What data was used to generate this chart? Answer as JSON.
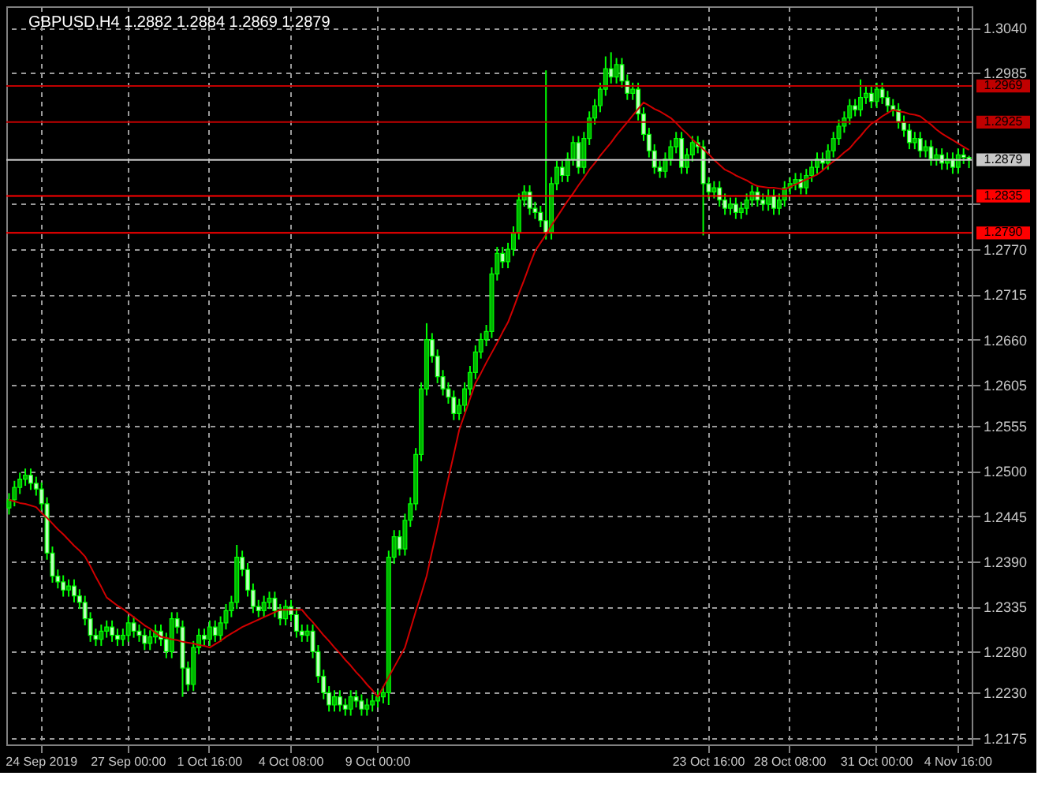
{
  "chart_data": {
    "type": "candlestick",
    "title": "GBPUSD,H4 1.2882 1.2884 1.2869 1.2879",
    "color": "#00ff00",
    "grid": true,
    "categories": [
      null,
      null,
      null,
      null,
      null,
      null,
      "24 Sep 2019",
      null,
      null,
      null,
      null,
      null,
      null,
      null,
      null,
      null,
      null,
      null,
      null,
      null,
      null,
      null,
      "27 Sep 00:00",
      null,
      null,
      null,
      null,
      null,
      null,
      null,
      null,
      null,
      null,
      null,
      null,
      null,
      null,
      "1 Oct 16:00",
      null,
      null,
      null,
      null,
      null,
      null,
      null,
      null,
      null,
      null,
      null,
      null,
      null,
      null,
      "4 Oct 08:00",
      null,
      null,
      null,
      null,
      null,
      null,
      null,
      null,
      null,
      null,
      null,
      null,
      null,
      null,
      null,
      "9 Oct 00:00",
      null,
      null,
      null,
      null,
      null,
      null,
      null,
      null,
      null,
      null,
      null,
      null,
      null,
      null,
      null,
      null,
      null,
      null,
      null,
      null,
      null,
      null,
      null,
      null,
      null,
      null,
      null,
      null,
      null,
      null,
      null,
      null,
      null,
      null,
      null,
      null,
      null,
      null,
      null,
      null,
      null,
      null,
      null,
      null,
      null,
      null,
      null,
      null,
      null,
      null,
      null,
      null,
      null,
      null,
      null,
      null,
      null,
      null,
      null,
      null,
      "23 Oct 16:00",
      null,
      null,
      null,
      null,
      null,
      null,
      null,
      null,
      null,
      null,
      null,
      null,
      null,
      null,
      "28 Oct 08:00",
      null,
      null,
      null,
      null,
      null,
      null,
      null,
      null,
      null,
      null,
      null,
      null,
      null,
      null,
      null,
      "31 Oct 00:00",
      null,
      null,
      null,
      null,
      null,
      null,
      null,
      null,
      null,
      null,
      null,
      null,
      null,
      null,
      "4 Nov 16:00",
      null,
      null
    ],
    "ohlc": [
      [
        1.2455,
        1.2473,
        1.2447,
        1.2465
      ],
      [
        1.2465,
        1.2488,
        1.2457,
        1.248
      ],
      [
        1.248,
        1.2498,
        1.2472,
        1.249
      ],
      [
        1.249,
        1.2503,
        1.2482,
        1.2495
      ],
      [
        1.2495,
        1.2503,
        1.2477,
        1.2485
      ],
      [
        1.2485,
        1.2493,
        1.247,
        1.2478
      ],
      [
        1.2478,
        1.2486,
        1.2452,
        1.246
      ],
      [
        1.246,
        1.2468,
        1.2392,
        1.24
      ],
      [
        1.24,
        1.2408,
        1.2364,
        1.2372
      ],
      [
        1.2372,
        1.238,
        1.2357,
        1.2365
      ],
      [
        1.2365,
        1.2373,
        1.2347,
        1.2355
      ],
      [
        1.2355,
        1.2368,
        1.2347,
        1.236
      ],
      [
        1.236,
        1.2368,
        1.234,
        1.2348
      ],
      [
        1.2348,
        1.2356,
        1.2332,
        1.234
      ],
      [
        1.234,
        1.2348,
        1.2312,
        1.232
      ],
      [
        1.232,
        1.2328,
        1.2292,
        1.23
      ],
      [
        1.23,
        1.2308,
        1.2287,
        1.2295
      ],
      [
        1.2295,
        1.2313,
        1.2287,
        1.2305
      ],
      [
        1.2305,
        1.2318,
        1.2297,
        1.231
      ],
      [
        1.231,
        1.2318,
        1.2292,
        1.23
      ],
      [
        1.23,
        1.2308,
        1.2287,
        1.2295
      ],
      [
        1.2295,
        1.2308,
        1.2287,
        1.23
      ],
      [
        1.23,
        1.2323,
        1.2292,
        1.2315
      ],
      [
        1.2315,
        1.2323,
        1.2297,
        1.2305
      ],
      [
        1.2305,
        1.2313,
        1.2292,
        1.23
      ],
      [
        1.23,
        1.2308,
        1.2282,
        1.229
      ],
      [
        1.229,
        1.2306,
        1.2282,
        1.2298
      ],
      [
        1.2298,
        1.2313,
        1.229,
        1.2305
      ],
      [
        1.2305,
        1.2313,
        1.2287,
        1.2295
      ],
      [
        1.2295,
        1.2303,
        1.2272,
        1.228
      ],
      [
        1.228,
        1.2328,
        1.2272,
        1.232
      ],
      [
        1.232,
        1.2328,
        1.2302,
        1.231
      ],
      [
        1.231,
        1.2318,
        1.2225,
        1.226
      ],
      [
        1.226,
        1.2268,
        1.2232,
        1.224
      ],
      [
        1.224,
        1.2293,
        1.2232,
        1.2285
      ],
      [
        1.2285,
        1.2308,
        1.2277,
        1.23
      ],
      [
        1.23,
        1.2308,
        1.2287,
        1.2295
      ],
      [
        1.2295,
        1.2318,
        1.2287,
        1.231
      ],
      [
        1.231,
        1.2318,
        1.2292,
        1.23
      ],
      [
        1.23,
        1.2323,
        1.2292,
        1.2315
      ],
      [
        1.2315,
        1.2338,
        1.2307,
        1.233
      ],
      [
        1.233,
        1.2348,
        1.2322,
        1.234
      ],
      [
        1.234,
        1.241,
        1.2332,
        1.2395
      ],
      [
        1.2395,
        1.2403,
        1.2372,
        1.238
      ],
      [
        1.238,
        1.2388,
        1.2347,
        1.2355
      ],
      [
        1.2355,
        1.2363,
        1.2327,
        1.2335
      ],
      [
        1.2335,
        1.2343,
        1.2322,
        1.233
      ],
      [
        1.233,
        1.2348,
        1.2322,
        1.234
      ],
      [
        1.234,
        1.2353,
        1.2332,
        1.2345
      ],
      [
        1.2345,
        1.2353,
        1.2322,
        1.233
      ],
      [
        1.233,
        1.2338,
        1.2312,
        1.232
      ],
      [
        1.232,
        1.2343,
        1.2312,
        1.2335
      ],
      [
        1.2335,
        1.2343,
        1.2317,
        1.2325
      ],
      [
        1.2325,
        1.2333,
        1.2297,
        1.2305
      ],
      [
        1.2305,
        1.2313,
        1.2292,
        1.23
      ],
      [
        1.23,
        1.2313,
        1.2292,
        1.2305
      ],
      [
        1.2305,
        1.2313,
        1.2272,
        1.228
      ],
      [
        1.228,
        1.2288,
        1.2242,
        1.225
      ],
      [
        1.225,
        1.2258,
        1.2222,
        1.223
      ],
      [
        1.223,
        1.2238,
        1.2207,
        1.2215
      ],
      [
        1.2215,
        1.2233,
        1.2207,
        1.2225
      ],
      [
        1.2225,
        1.2233,
        1.2207,
        1.2215
      ],
      [
        1.2215,
        1.2223,
        1.2202,
        1.221
      ],
      [
        1.221,
        1.2233,
        1.2202,
        1.2225
      ],
      [
        1.2225,
        1.2233,
        1.2212,
        1.222
      ],
      [
        1.222,
        1.2228,
        1.2202,
        1.221
      ],
      [
        1.221,
        1.2223,
        1.2202,
        1.2215
      ],
      [
        1.2215,
        1.2228,
        1.2207,
        1.222
      ],
      [
        1.222,
        1.2233,
        1.2212,
        1.2225
      ],
      [
        1.2225,
        1.2238,
        1.2217,
        1.223
      ],
      [
        1.223,
        1.2403,
        1.2215,
        1.2395
      ],
      [
        1.2395,
        1.2428,
        1.2387,
        1.242
      ],
      [
        1.242,
        1.2428,
        1.2397,
        1.2405
      ],
      [
        1.2405,
        1.2448,
        1.2397,
        1.244
      ],
      [
        1.244,
        1.2468,
        1.2432,
        1.246
      ],
      [
        1.246,
        1.2528,
        1.2452,
        1.252
      ],
      [
        1.252,
        1.2608,
        1.2512,
        1.26
      ],
      [
        1.26,
        1.268,
        1.2592,
        1.266
      ],
      [
        1.266,
        1.2668,
        1.2632,
        1.264
      ],
      [
        1.264,
        1.2648,
        1.2607,
        1.2615
      ],
      [
        1.2615,
        1.2623,
        1.2592,
        1.26
      ],
      [
        1.26,
        1.2608,
        1.2582,
        1.259
      ],
      [
        1.259,
        1.2598,
        1.2562,
        1.257
      ],
      [
        1.257,
        1.2588,
        1.2562,
        1.258
      ],
      [
        1.258,
        1.2608,
        1.2572,
        1.26
      ],
      [
        1.26,
        1.2628,
        1.2592,
        1.262
      ],
      [
        1.262,
        1.2653,
        1.2612,
        1.2645
      ],
      [
        1.2645,
        1.2668,
        1.2637,
        1.266
      ],
      [
        1.266,
        1.2678,
        1.2652,
        1.267
      ],
      [
        1.267,
        1.2748,
        1.2662,
        1.274
      ],
      [
        1.274,
        1.2773,
        1.2732,
        1.2765
      ],
      [
        1.2765,
        1.2773,
        1.2747,
        1.2755
      ],
      [
        1.2755,
        1.2778,
        1.2747,
        1.277
      ],
      [
        1.277,
        1.2798,
        1.2762,
        1.279
      ],
      [
        1.279,
        1.2838,
        1.2782,
        1.283
      ],
      [
        1.283,
        1.2848,
        1.2822,
        1.284
      ],
      [
        1.284,
        1.2848,
        1.2812,
        1.282
      ],
      [
        1.282,
        1.2828,
        1.2807,
        1.2815
      ],
      [
        1.2815,
        1.2823,
        1.2797,
        1.2805
      ],
      [
        1.2805,
        1.2988,
        1.2782,
        1.279
      ],
      [
        1.279,
        1.2858,
        1.2782,
        1.285
      ],
      [
        1.285,
        1.2878,
        1.2842,
        1.287
      ],
      [
        1.287,
        1.2878,
        1.2852,
        1.286
      ],
      [
        1.286,
        1.2888,
        1.2852,
        1.288
      ],
      [
        1.288,
        1.2908,
        1.2872,
        1.29
      ],
      [
        1.29,
        1.2908,
        1.2862,
        1.287
      ],
      [
        1.287,
        1.2913,
        1.2862,
        1.2905
      ],
      [
        1.2905,
        1.2938,
        1.2897,
        1.293
      ],
      [
        1.293,
        1.2953,
        1.2922,
        1.2945
      ],
      [
        1.2945,
        1.2973,
        1.2937,
        1.2965
      ],
      [
        1.2965,
        1.3005,
        1.2957,
        1.299
      ],
      [
        1.299,
        1.301,
        1.2972,
        1.298
      ],
      [
        1.298,
        1.3003,
        1.2972,
        1.2995
      ],
      [
        1.2995,
        1.3003,
        1.2967,
        1.2975
      ],
      [
        1.2975,
        1.2983,
        1.2952,
        1.296
      ],
      [
        1.296,
        1.2973,
        1.2952,
        1.2965
      ],
      [
        1.2965,
        1.2973,
        1.2927,
        1.2935
      ],
      [
        1.2935,
        1.2943,
        1.2902,
        1.291
      ],
      [
        1.291,
        1.2918,
        1.2882,
        1.289
      ],
      [
        1.289,
        1.2898,
        1.2862,
        1.287
      ],
      [
        1.287,
        1.2878,
        1.2857,
        1.2865
      ],
      [
        1.2865,
        1.2888,
        1.2857,
        1.288
      ],
      [
        1.288,
        1.2903,
        1.2872,
        1.2895
      ],
      [
        1.2895,
        1.2913,
        1.2887,
        1.2905
      ],
      [
        1.2905,
        1.2913,
        1.2862,
        1.287
      ],
      [
        1.287,
        1.2893,
        1.2862,
        1.2885
      ],
      [
        1.2885,
        1.2908,
        1.2877,
        1.29
      ],
      [
        1.29,
        1.2908,
        1.2887,
        1.2895
      ],
      [
        1.2895,
        1.2903,
        1.2787,
        1.285
      ],
      [
        1.285,
        1.2858,
        1.2832,
        1.284
      ],
      [
        1.284,
        1.2853,
        1.2832,
        1.2845
      ],
      [
        1.2845,
        1.2853,
        1.2822,
        1.283
      ],
      [
        1.283,
        1.2838,
        1.2812,
        1.282
      ],
      [
        1.282,
        1.2833,
        1.2812,
        1.2825
      ],
      [
        1.2825,
        1.2833,
        1.2807,
        1.2815
      ],
      [
        1.2815,
        1.2828,
        1.2807,
        1.282
      ],
      [
        1.282,
        1.2838,
        1.2812,
        1.283
      ],
      [
        1.283,
        1.2848,
        1.2822,
        1.284
      ],
      [
        1.284,
        1.2848,
        1.2822,
        1.283
      ],
      [
        1.283,
        1.2838,
        1.2817,
        1.2825
      ],
      [
        1.2825,
        1.2843,
        1.2817,
        1.2835
      ],
      [
        1.2835,
        1.2843,
        1.2812,
        1.282
      ],
      [
        1.282,
        1.2838,
        1.2812,
        1.283
      ],
      [
        1.283,
        1.2853,
        1.2822,
        1.2845
      ],
      [
        1.2845,
        1.2858,
        1.2837,
        1.285
      ],
      [
        1.285,
        1.2863,
        1.2842,
        1.2855
      ],
      [
        1.2855,
        1.2863,
        1.2837,
        1.2845
      ],
      [
        1.2845,
        1.2868,
        1.2837,
        1.286
      ],
      [
        1.286,
        1.2878,
        1.2852,
        1.287
      ],
      [
        1.287,
        1.2888,
        1.2862,
        1.288
      ],
      [
        1.288,
        1.2888,
        1.2867,
        1.2875
      ],
      [
        1.2875,
        1.2898,
        1.2867,
        1.289
      ],
      [
        1.289,
        1.2913,
        1.2882,
        1.2905
      ],
      [
        1.2905,
        1.2928,
        1.2897,
        1.292
      ],
      [
        1.292,
        1.2938,
        1.2912,
        1.293
      ],
      [
        1.293,
        1.2953,
        1.2922,
        1.2945
      ],
      [
        1.2945,
        1.2953,
        1.2932,
        1.294
      ],
      [
        1.294,
        1.2977,
        1.2932,
        1.2955
      ],
      [
        1.2955,
        1.2968,
        1.2947,
        1.296
      ],
      [
        1.296,
        1.2968,
        1.2942,
        1.295
      ],
      [
        1.295,
        1.2973,
        1.2942,
        1.2965
      ],
      [
        1.2965,
        1.2973,
        1.2947,
        1.2955
      ],
      [
        1.2955,
        1.2963,
        1.2937,
        1.2945
      ],
      [
        1.2945,
        1.2953,
        1.2932,
        1.294
      ],
      [
        1.294,
        1.2948,
        1.2917,
        1.2925
      ],
      [
        1.2925,
        1.2933,
        1.2907,
        1.2915
      ],
      [
        1.2915,
        1.2923,
        1.2892,
        1.29
      ],
      [
        1.29,
        1.2913,
        1.2892,
        1.2905
      ],
      [
        1.2905,
        1.2913,
        1.2882,
        1.289
      ],
      [
        1.289,
        1.2903,
        1.2882,
        1.2895
      ],
      [
        1.2895,
        1.2903,
        1.2872,
        1.288
      ],
      [
        1.288,
        1.2893,
        1.2872,
        1.2885
      ],
      [
        1.2885,
        1.2893,
        1.2867,
        1.2875
      ],
      [
        1.2875,
        1.2888,
        1.2867,
        1.288
      ],
      [
        1.288,
        1.2888,
        1.2862,
        1.287
      ],
      [
        1.287,
        1.2893,
        1.2862,
        1.2885
      ],
      [
        1.2885,
        1.2893,
        1.2874,
        1.2882
      ],
      [
        1.2882,
        1.2884,
        1.2869,
        1.2879
      ]
    ],
    "series": [
      {
        "type": "line",
        "color": "#d00000",
        "values": [
          1.2465,
          1.2463,
          1.2461,
          1.246,
          1.2458,
          1.2456,
          1.2449,
          1.2443,
          1.2436,
          1.2429,
          1.2423,
          1.2416,
          1.2409,
          1.2403,
          1.2396,
          1.2384,
          1.2371,
          1.2359,
          1.2346,
          1.2341,
          1.2336,
          1.2332,
          1.2327,
          1.2322,
          1.2317,
          1.2312,
          1.2308,
          1.2303,
          1.2298,
          1.2297,
          1.2295,
          1.2294,
          1.2292,
          1.2291,
          1.229,
          1.2288,
          1.2287,
          1.2285,
          1.2289,
          1.2293,
          1.2298,
          1.2302,
          1.2306,
          1.231,
          1.2313,
          1.2316,
          1.2319,
          1.2322,
          1.2325,
          1.2328,
          1.2331,
          1.2331,
          1.2331,
          1.2331,
          1.2331,
          1.2323,
          1.2316,
          1.2308,
          1.23,
          1.2293,
          1.2285,
          1.2278,
          1.227,
          1.2263,
          1.2255,
          1.2248,
          1.224,
          1.2233,
          1.2225,
          1.2237,
          1.2249,
          1.2261,
          1.2273,
          1.2285,
          1.2307,
          1.2329,
          1.235,
          1.2372,
          1.2402,
          1.2431,
          1.2461,
          1.2491,
          1.252,
          1.255,
          1.2569,
          1.2588,
          1.2607,
          1.2619,
          1.2632,
          1.2644,
          1.2656,
          1.2669,
          1.2681,
          1.2698,
          1.2716,
          1.2733,
          1.2751,
          1.2768,
          1.2778,
          1.2788,
          1.2799,
          1.2809,
          1.2819,
          1.2829,
          1.2838,
          1.2848,
          1.2857,
          1.2867,
          1.2875,
          1.2884,
          1.2892,
          1.29,
          1.2909,
          1.2917,
          1.2925,
          1.2933,
          1.2941,
          1.2949,
          1.2945,
          1.2941,
          1.2938,
          1.2934,
          1.293,
          1.2924,
          1.2917,
          1.2911,
          1.2904,
          1.2898,
          1.2892,
          1.2886,
          1.2879,
          1.2873,
          1.2867,
          1.2864,
          1.286,
          1.2857,
          1.2854,
          1.285,
          1.2847,
          1.2846,
          1.2845,
          1.2845,
          1.2844,
          1.2843,
          1.2846,
          1.2849,
          1.2852,
          1.2855,
          1.2858,
          1.2861,
          1.2866,
          1.2872,
          1.2877,
          1.2882,
          1.2888,
          1.2893,
          1.2901,
          1.2908,
          1.2916,
          1.2923,
          1.2927,
          1.2932,
          1.2936,
          1.294,
          1.2938,
          1.2937,
          1.2935,
          1.2934,
          1.2932,
          1.2927,
          1.2922,
          1.2916,
          1.2911,
          1.2907,
          1.2903,
          1.2899,
          1.2895,
          1.2891
        ]
      }
    ],
    "ylim": [
      1.2167,
      1.3066
    ],
    "yticks": [
      {
        "value": 1.304,
        "label": "1.3040"
      },
      1.2985,
      {
        "value": 1.2825,
        "label": null
      },
      {
        "value": 1.277,
        "label": "1.2770"
      },
      1.2715,
      {
        "value": 1.266,
        "label": "1.2660"
      },
      1.2605,
      1.2555,
      {
        "value": 1.25,
        "label": "1.2500"
      },
      1.2445,
      {
        "value": 1.239,
        "label": "1.2390"
      },
      1.2335,
      {
        "value": 1.228,
        "label": "1.2280"
      },
      {
        "value": 1.223,
        "label": "1.2230"
      },
      1.2175
    ],
    "ref_lines": [
      {
        "axis": "y",
        "value": 1.2969,
        "label": "1.2969",
        "color": "#c00000"
      },
      {
        "axis": "y",
        "value": 1.2925,
        "label": "1.2925",
        "color": "#c00000"
      },
      {
        "axis": "y",
        "value": 1.2879,
        "label": "1.2879",
        "color": "#c8c8c8"
      },
      {
        "axis": "y",
        "value": 1.2835,
        "label": "1.2835",
        "color": "#ff0000"
      },
      {
        "axis": "y",
        "value": 1.279,
        "label": "1.2790",
        "color": "#ff0000"
      }
    ]
  }
}
